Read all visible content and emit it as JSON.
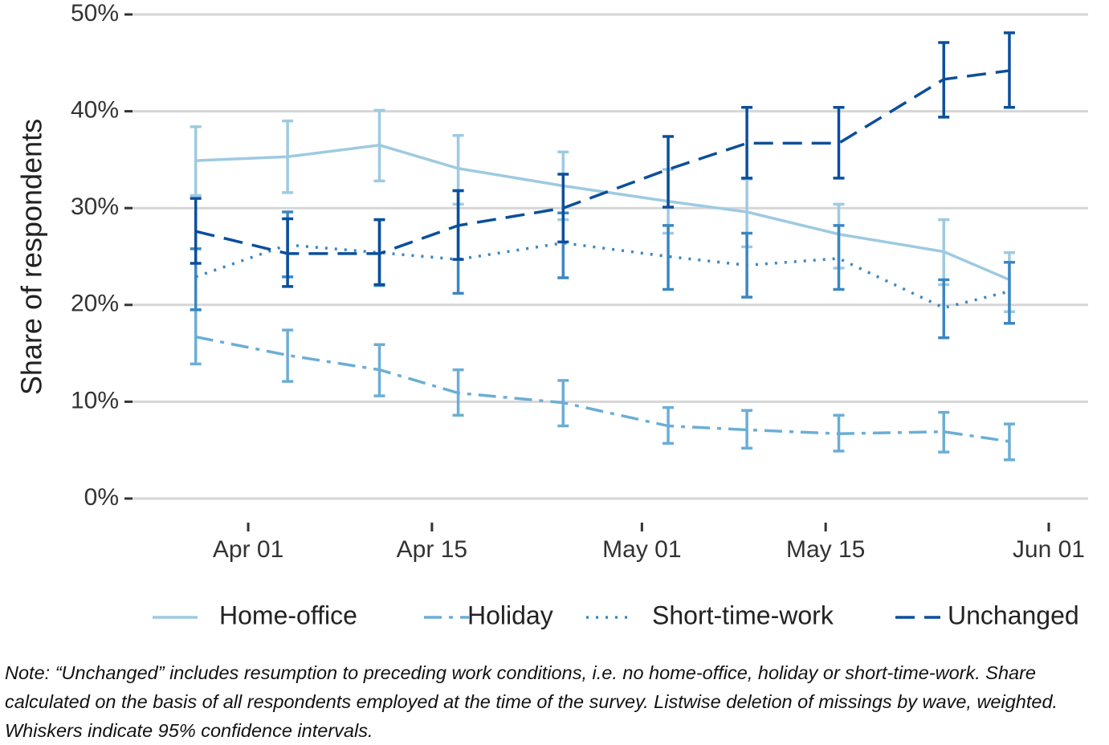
{
  "chart_data": {
    "type": "line",
    "ylabel": "Share of respondents",
    "x": [
      "Mar 28",
      "Apr 04",
      "Apr 11",
      "Apr 17",
      "Apr 25",
      "May 03",
      "May 09",
      "May 16",
      "May 24",
      "May 29"
    ],
    "xlim": [
      "Mar 23",
      "Jun 04"
    ],
    "xticks": [
      "Apr 01",
      "Apr 15",
      "May 01",
      "May 15",
      "Jun 01"
    ],
    "ylim": [
      0,
      50
    ],
    "yticks": [
      {
        "value": 0,
        "label": "0%"
      },
      {
        "value": 10,
        "label": "10%"
      },
      {
        "value": 20,
        "label": "20%"
      },
      {
        "value": 30,
        "label": "30%"
      },
      {
        "value": 40,
        "label": "40%"
      },
      {
        "value": 50,
        "label": "50%"
      }
    ],
    "grid": true,
    "legend": "bottom",
    "series": [
      {
        "name": "Home-office",
        "color": "#9ecae1",
        "linestyle": "solid",
        "values": [
          34.9,
          35.3,
          36.5,
          34.1,
          32.3,
          30.7,
          29.6,
          27.3,
          25.5,
          22.6
        ],
        "lower": [
          31.3,
          31.6,
          32.8,
          30.4,
          28.8,
          27.4,
          26.0,
          23.8,
          22.1,
          19.3
        ],
        "upper": [
          38.4,
          39.0,
          40.1,
          37.5,
          35.8,
          34.0,
          33.0,
          30.4,
          28.8,
          25.4
        ]
      },
      {
        "name": "Holiday",
        "color": "#6baed6",
        "linestyle": "dashdot",
        "values": [
          16.7,
          14.8,
          13.3,
          10.9,
          9.9,
          7.5,
          7.1,
          6.7,
          6.9,
          5.9
        ],
        "lower": [
          13.9,
          12.1,
          10.6,
          8.6,
          7.5,
          5.7,
          5.2,
          4.9,
          4.8,
          4.0
        ],
        "upper": [
          19.5,
          17.4,
          15.9,
          13.3,
          12.2,
          9.4,
          9.1,
          8.6,
          8.9,
          7.7
        ]
      },
      {
        "name": "Short-time-work",
        "color": "#3a87c2",
        "linestyle": "dotted",
        "values": [
          22.9,
          26.2,
          25.4,
          24.7,
          26.4,
          25.0,
          24.1,
          24.8,
          19.7,
          21.4
        ],
        "lower": [
          19.5,
          22.9,
          22.0,
          21.2,
          22.8,
          21.6,
          20.8,
          21.6,
          16.6,
          18.1
        ],
        "upper": [
          25.8,
          29.6,
          28.8,
          31.8,
          29.5,
          28.2,
          27.4,
          28.2,
          22.6,
          24.4
        ]
      },
      {
        "name": "Unchanged",
        "color": "#0b4f9c",
        "linestyle": "dashed",
        "values": [
          27.6,
          25.3,
          25.3,
          28.2,
          30.0,
          34.0,
          36.7,
          36.7,
          43.3,
          44.2
        ],
        "lower": [
          24.3,
          21.9,
          22.1,
          24.7,
          26.5,
          30.1,
          33.1,
          33.1,
          39.4,
          40.4
        ],
        "upper": [
          31.0,
          28.9,
          28.8,
          31.8,
          33.5,
          37.4,
          40.4,
          40.4,
          47.1,
          48.1
        ]
      }
    ]
  },
  "note": "Note: “Unchanged” includes resumption to preceding work conditions, i.e. no home-office, holiday or short-time-work. Share calculated on the basis of all respondents employed at the time of the survey. Listwise deletion of missings by wave, weighted. Whiskers indicate 95% confidence intervals."
}
